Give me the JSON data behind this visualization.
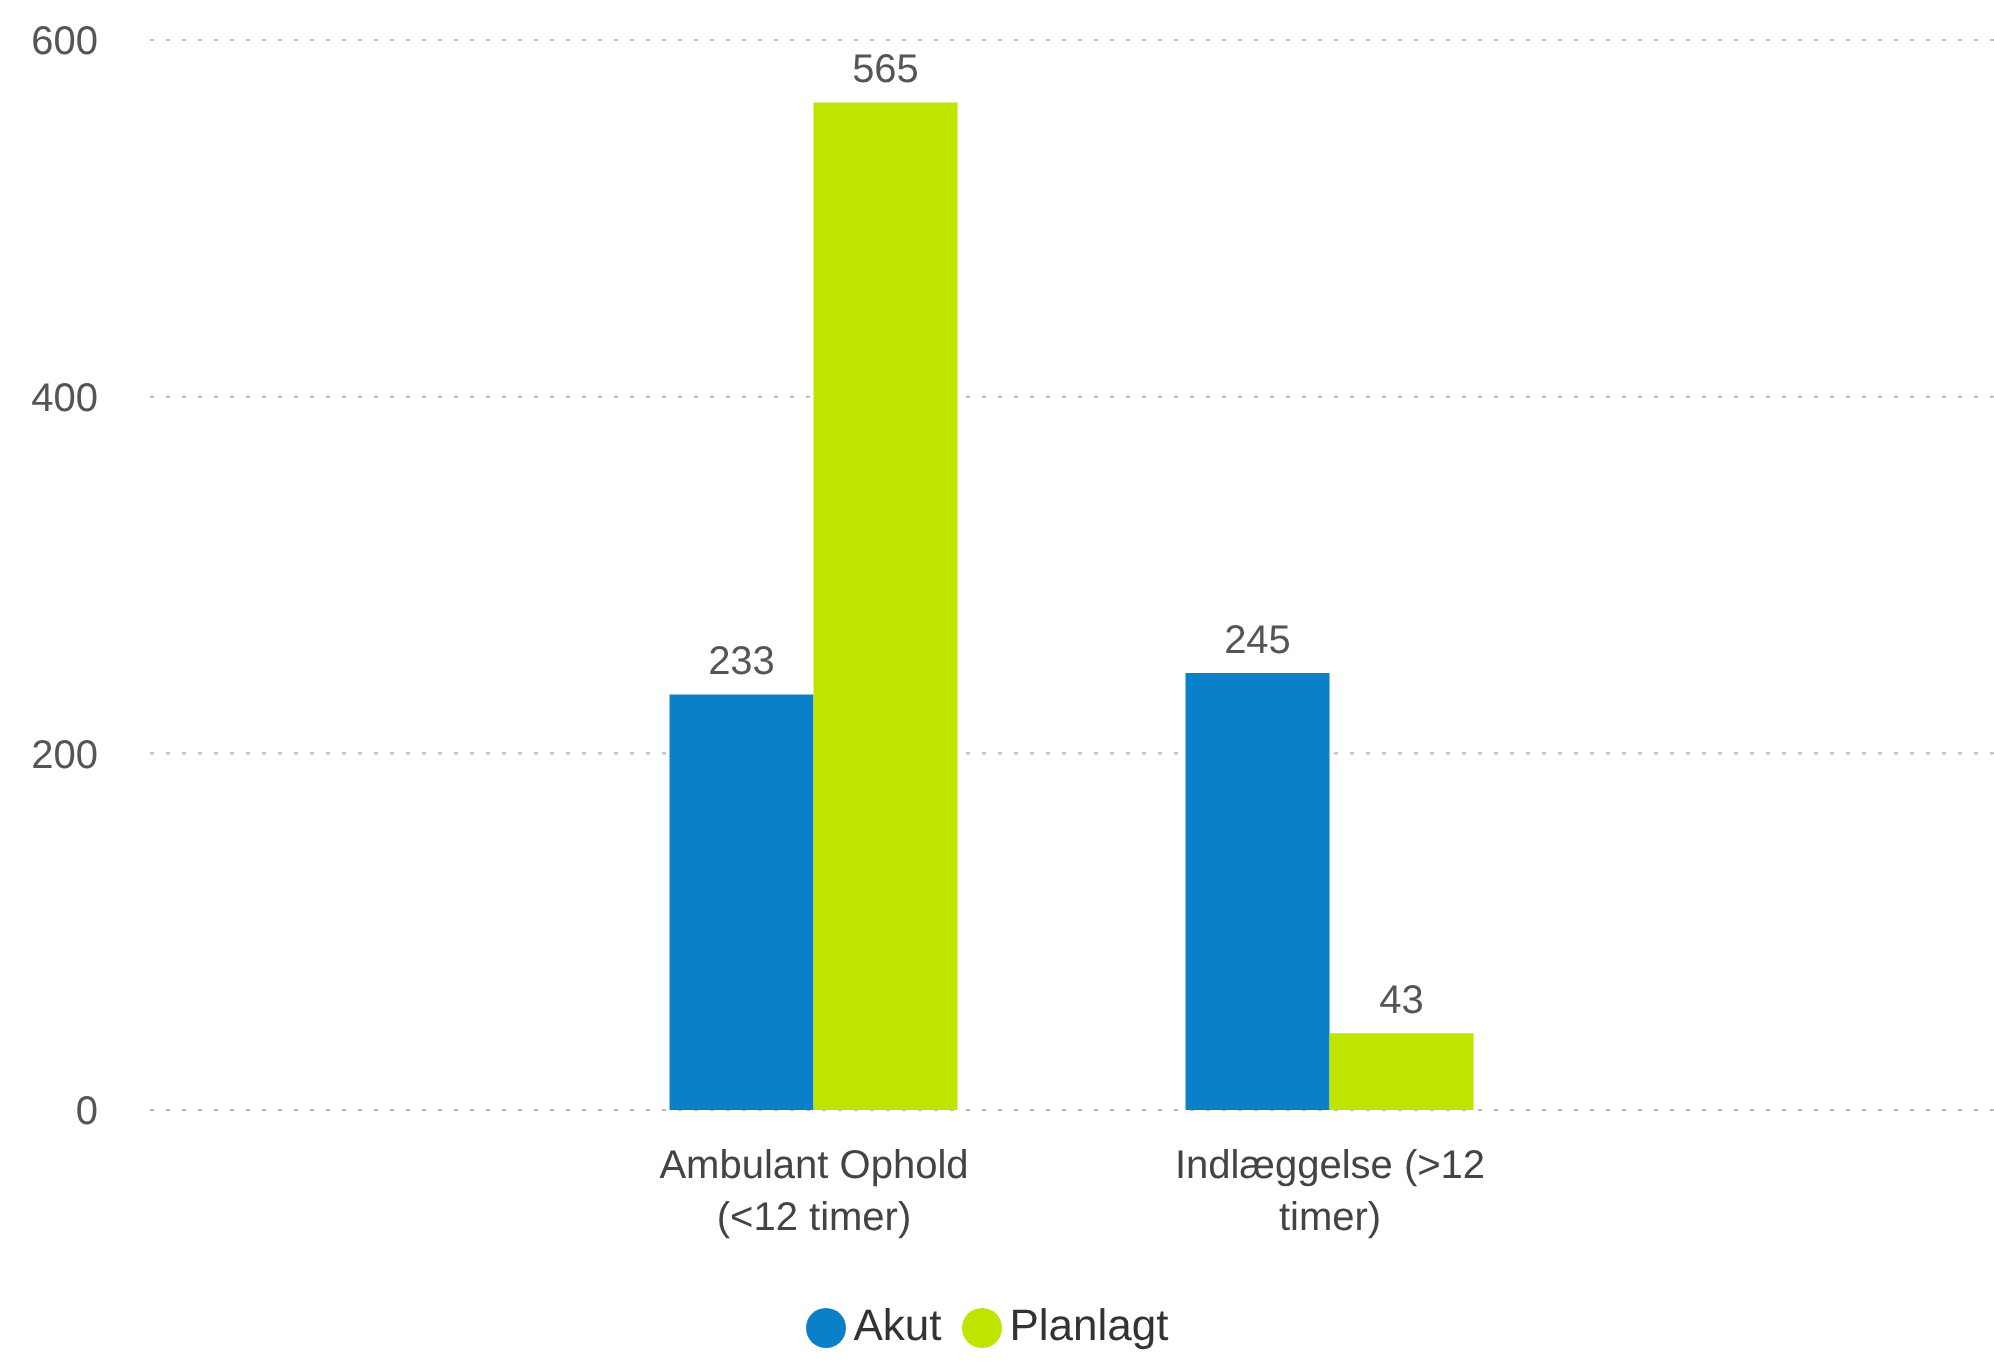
{
  "chart_data": {
    "type": "bar",
    "categories": [
      "Ambulant Ophold (<12 timer)",
      "Indlæggelse (>12 timer)"
    ],
    "series": [
      {
        "name": "Akut",
        "color": "#0a80c8",
        "values": [
          233,
          245
        ]
      },
      {
        "name": "Planlagt",
        "color": "#bde500",
        "values": [
          565,
          43
        ]
      }
    ],
    "ylim": [
      0,
      600
    ],
    "yticks": [
      0,
      200,
      400,
      600
    ],
    "grid": "y",
    "legend": "bottom",
    "data_labels": true
  }
}
